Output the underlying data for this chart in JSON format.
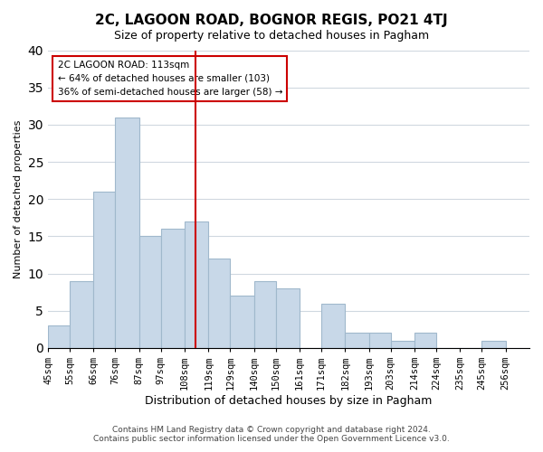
{
  "title": "2C, LAGOON ROAD, BOGNOR REGIS, PO21 4TJ",
  "subtitle": "Size of property relative to detached houses in Pagham",
  "xlabel": "Distribution of detached houses by size in Pagham",
  "ylabel": "Number of detached properties",
  "bin_labels": [
    "45sqm",
    "55sqm",
    "66sqm",
    "76sqm",
    "87sqm",
    "97sqm",
    "108sqm",
    "119sqm",
    "129sqm",
    "140sqm",
    "150sqm",
    "161sqm",
    "171sqm",
    "182sqm",
    "193sqm",
    "203sqm",
    "214sqm",
    "224sqm",
    "235sqm",
    "245sqm",
    "256sqm"
  ],
  "bin_edges": [
    45,
    55,
    66,
    76,
    87,
    97,
    108,
    119,
    129,
    140,
    150,
    161,
    171,
    182,
    193,
    203,
    214,
    224,
    235,
    245,
    256
  ],
  "counts": [
    3,
    9,
    21,
    31,
    15,
    16,
    17,
    12,
    7,
    9,
    8,
    0,
    6,
    2,
    2,
    1,
    2,
    0,
    0,
    1
  ],
  "bar_color": "#c8d8e8",
  "bar_edge_color": "#a0b8cc",
  "vline_x": 113,
  "vline_color": "#cc0000",
  "ylim": [
    0,
    40
  ],
  "yticks": [
    0,
    5,
    10,
    15,
    20,
    25,
    30,
    35,
    40
  ],
  "annotation_title": "2C LAGOON ROAD: 113sqm",
  "annotation_line1": "← 64% of detached houses are smaller (103)",
  "annotation_line2": "36% of semi-detached houses are larger (58) →",
  "annotation_box_color": "#ffffff",
  "annotation_box_edge": "#cc0000",
  "footer_line1": "Contains HM Land Registry data © Crown copyright and database right 2024.",
  "footer_line2": "Contains public sector information licensed under the Open Government Licence v3.0.",
  "bg_color": "#ffffff",
  "grid_color": "#d0d8e0"
}
